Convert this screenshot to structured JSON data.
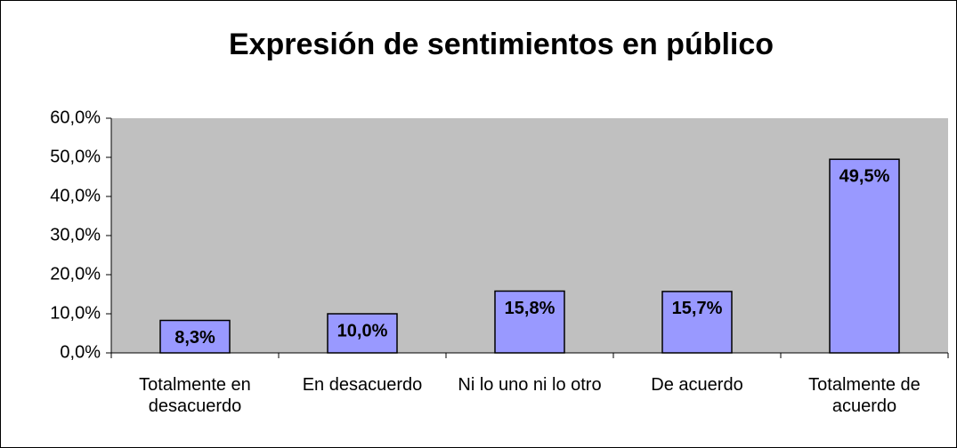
{
  "chart_data": {
    "type": "bar",
    "title": "Expresión de sentimientos en público",
    "categories": [
      "Totalmente en desacuerdo",
      "En desacuerdo",
      "Ni lo uno ni lo otro",
      "De acuerdo",
      "Totalmente de acuerdo"
    ],
    "values": [
      8.3,
      10.0,
      15.8,
      15.7,
      49.5
    ],
    "value_labels": [
      "8,3%",
      "10,0%",
      "15,8%",
      "15,7%",
      "49,5%"
    ],
    "color": "#9999ff",
    "background": "#c0c0c0",
    "ylim": [
      0,
      60
    ],
    "yticks": [
      {
        "value": 0,
        "label": "0,0%"
      },
      {
        "value": 10,
        "label": "10,0%"
      },
      {
        "value": 20,
        "label": "20,0%"
      },
      {
        "value": 30,
        "label": "30,0%"
      },
      {
        "value": 40,
        "label": "40,0%"
      },
      {
        "value": 50,
        "label": "50,0%"
      },
      {
        "value": 60,
        "label": "60,0%"
      }
    ],
    "grid": false
  }
}
